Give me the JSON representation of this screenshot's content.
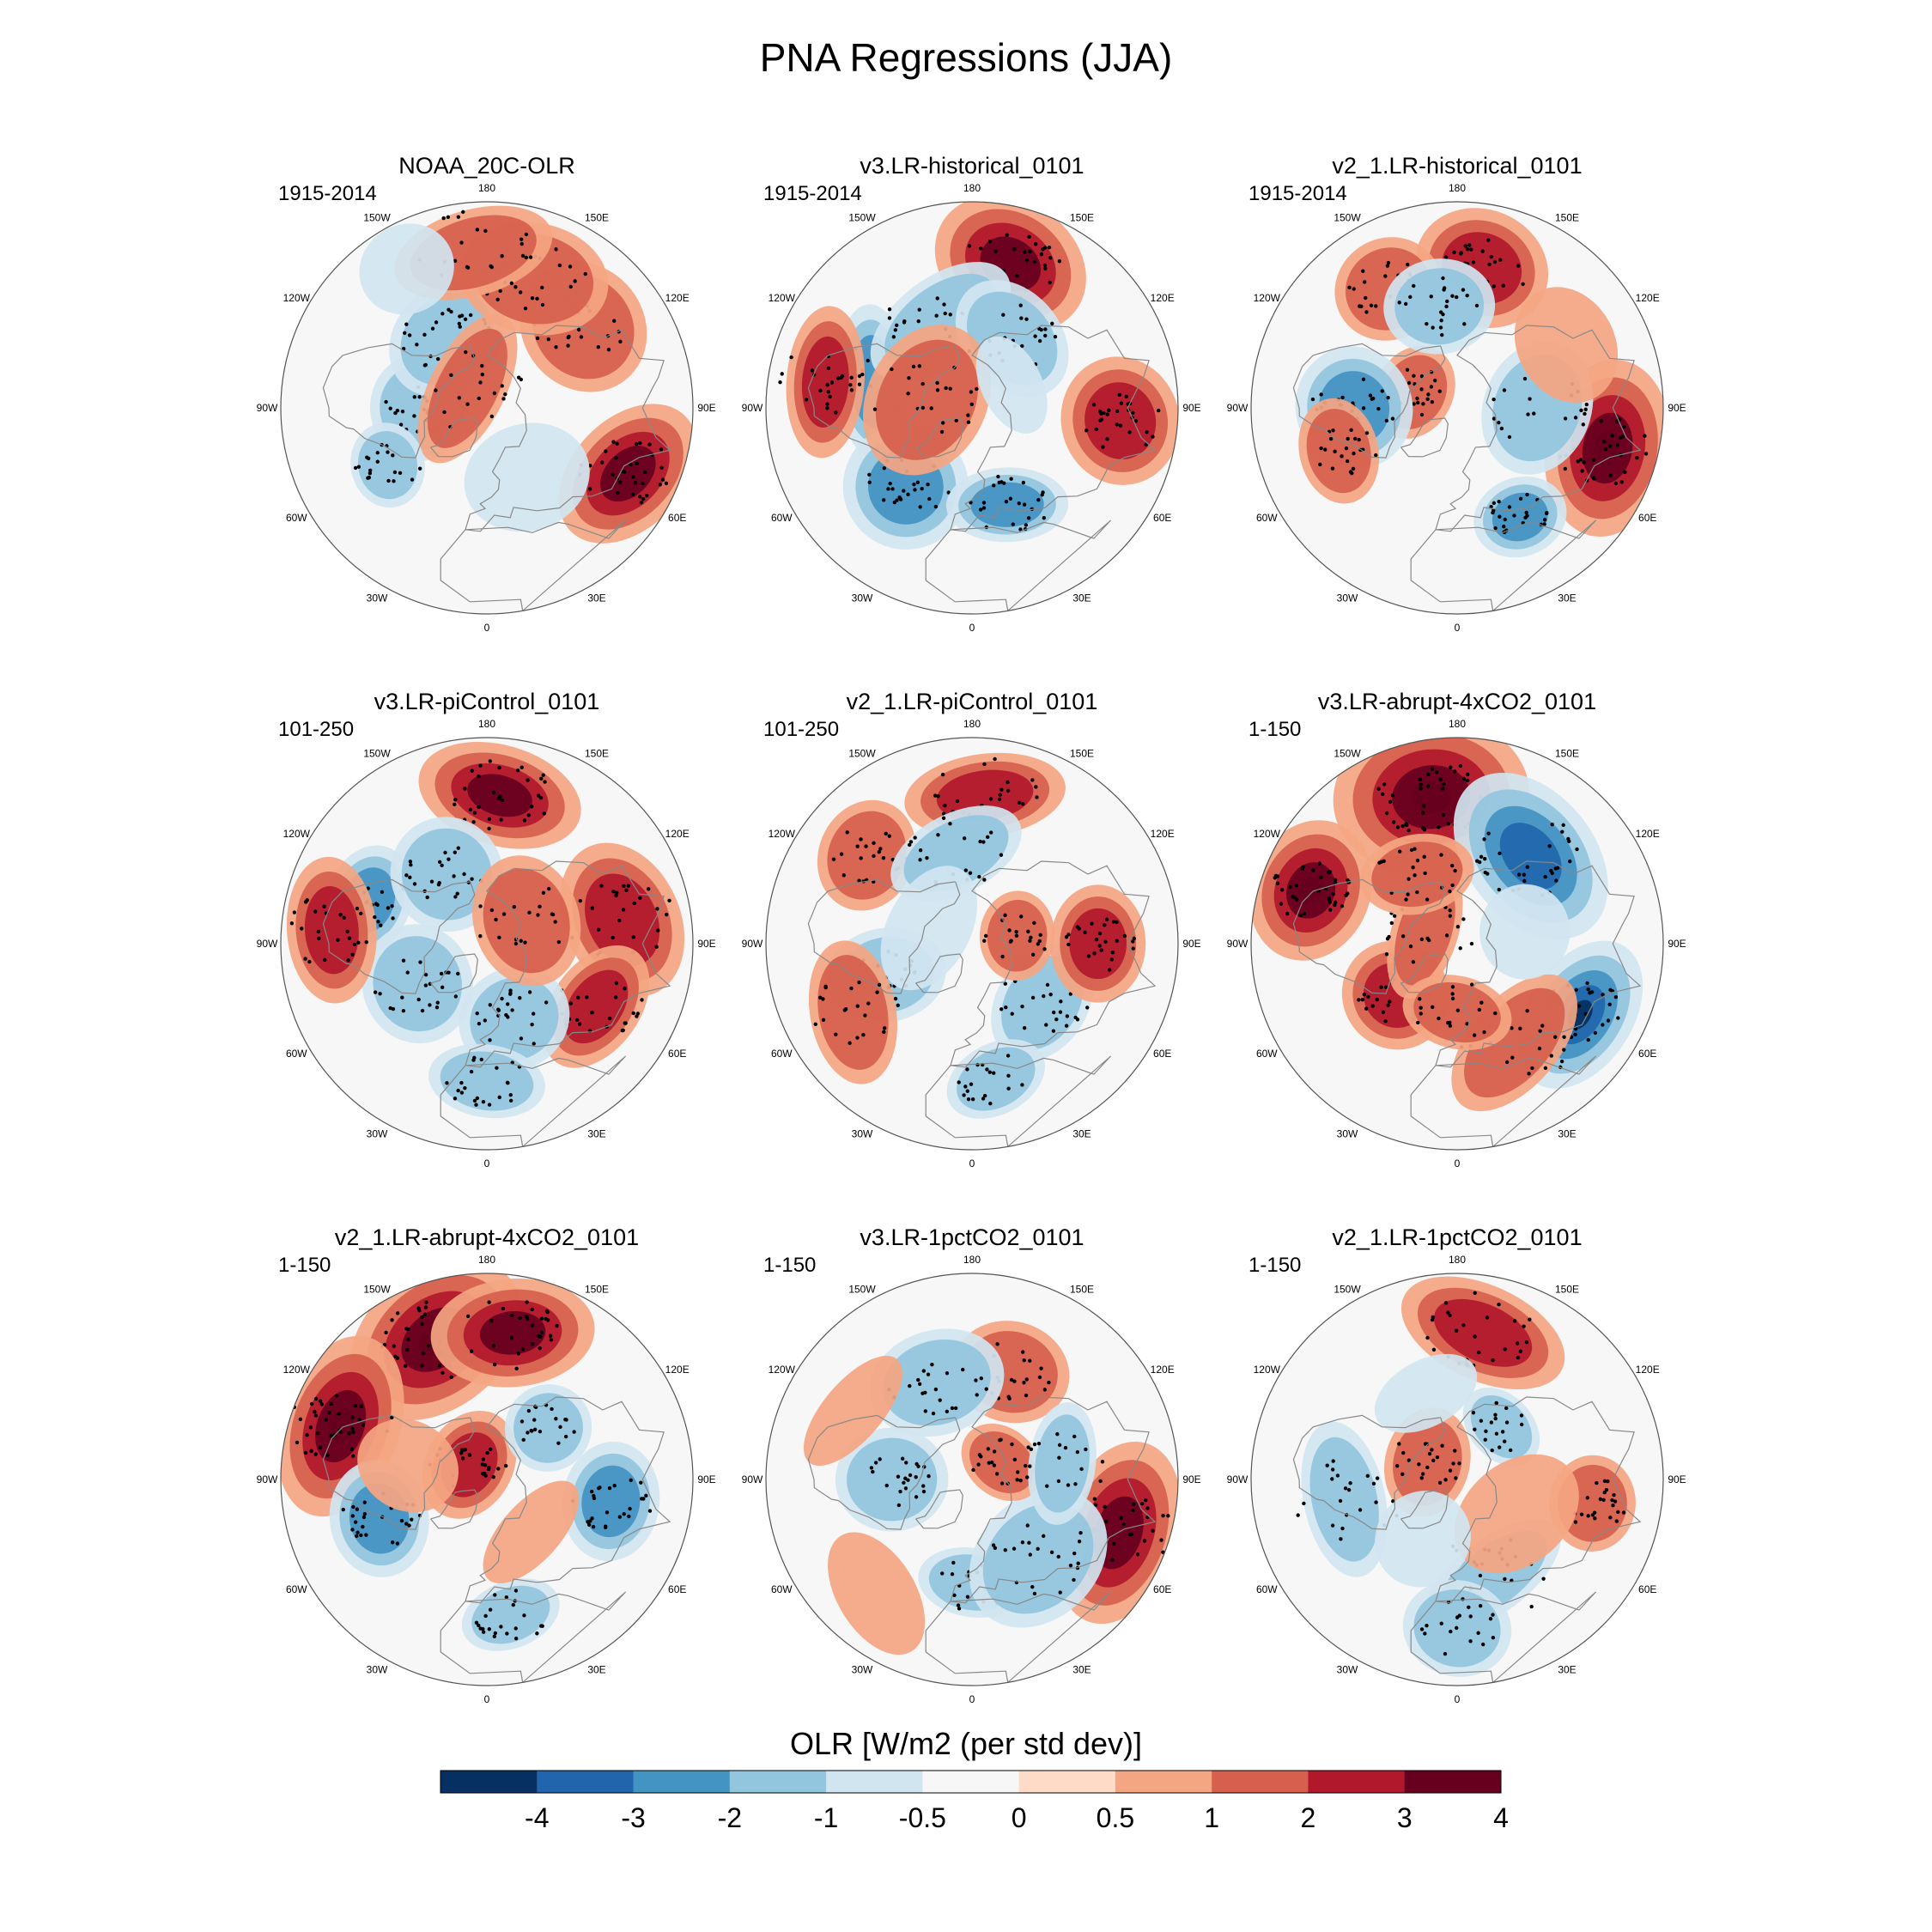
{
  "figure_title": "PNA Regressions (JJA)",
  "colors": {
    "levels": [
      "#053061",
      "#2166ac",
      "#4393c3",
      "#92c5de",
      "#d1e5f0",
      "#f7f7f7",
      "#fddbc7",
      "#f4a582",
      "#d6604d",
      "#b2182b",
      "#67001f"
    ],
    "land": "#888888",
    "border": "#555555"
  },
  "chart_data": {
    "type": "heatmap",
    "projection": "north-polar-stereographic",
    "title": "PNA Regressions (JJA)",
    "stipple_meaning": "statistically significant",
    "longitude_labels": [
      "180",
      "150E",
      "120E",
      "90E",
      "60E",
      "30E",
      "0",
      "30W",
      "60W",
      "90W",
      "120W",
      "150W"
    ],
    "panels": [
      {
        "title": "NOAA_20C-OLR",
        "period": "1915-2014",
        "features": [
          {
            "lon": 130,
            "lat": 35,
            "value": 1.5
          },
          {
            "lon": 65,
            "lat": 22,
            "value": 3.5
          },
          {
            "lon": -90,
            "lat": 60,
            "value": -1.5
          },
          {
            "lon": -150,
            "lat": 55,
            "value": -1.5
          },
          {
            "lon": 160,
            "lat": 30,
            "value": 1.5
          },
          {
            "lon": -175,
            "lat": 22,
            "value": 1.5
          },
          {
            "lon": -135,
            "lat": 78,
            "value": 1.5
          },
          {
            "lon": -60,
            "lat": 40,
            "value": -1
          },
          {
            "lon": 30,
            "lat": 55,
            "value": -0.5
          },
          {
            "lon": -150,
            "lat": 20,
            "value": -0.5
          }
        ]
      },
      {
        "title": "v3.LR-historical_0101",
        "period": "1915-2014",
        "features": [
          {
            "lon": 165,
            "lat": 25,
            "value": 3
          },
          {
            "lon": 85,
            "lat": 25,
            "value": 2.5
          },
          {
            "lon": -105,
            "lat": 45,
            "value": -2.5
          },
          {
            "lon": -40,
            "lat": 45,
            "value": -2
          },
          {
            "lon": 20,
            "lat": 45,
            "value": -2
          },
          {
            "lon": -160,
            "lat": 50,
            "value": -1.5
          },
          {
            "lon": 150,
            "lat": 55,
            "value": -1.5
          },
          {
            "lon": -100,
            "lat": 70,
            "value": 1.5
          },
          {
            "lon": -100,
            "lat": 25,
            "value": 2
          },
          {
            "lon": 120,
            "lat": 70,
            "value": -0.5
          }
        ]
      },
      {
        "title": "v2_1.LR-historical_0101",
        "period": "1915-2014",
        "features": [
          {
            "lon": 75,
            "lat": 22,
            "value": 4
          },
          {
            "lon": 170,
            "lat": 28,
            "value": 2
          },
          {
            "lon": -150,
            "lat": 30,
            "value": 1.5
          },
          {
            "lon": -110,
            "lat": 70,
            "value": 1.5
          },
          {
            "lon": -170,
            "lat": 45,
            "value": -1.5
          },
          {
            "lon": -90,
            "lat": 45,
            "value": -2
          },
          {
            "lon": 30,
            "lat": 35,
            "value": -2
          },
          {
            "lon": -70,
            "lat": 35,
            "value": 1.5
          },
          {
            "lon": 90,
            "lat": 55,
            "value": -1
          },
          {
            "lon": 120,
            "lat": 35,
            "value": 0.5
          }
        ]
      },
      {
        "title": "v3.LR-piControl_0101",
        "period": "101-250",
        "features": [
          {
            "lon": 175,
            "lat": 25,
            "value": 3
          },
          {
            "lon": 100,
            "lat": 30,
            "value": 2
          },
          {
            "lon": 60,
            "lat": 35,
            "value": 2
          },
          {
            "lon": -110,
            "lat": 35,
            "value": -2
          },
          {
            "lon": -150,
            "lat": 55,
            "value": -1.5
          },
          {
            "lon": -60,
            "lat": 55,
            "value": -1.5
          },
          {
            "lon": 20,
            "lat": 55,
            "value": -1.5
          },
          {
            "lon": 0,
            "lat": 30,
            "value": -1.5
          },
          {
            "lon": -95,
            "lat": 22,
            "value": 2
          },
          {
            "lon": 120,
            "lat": 70,
            "value": 1
          }
        ]
      },
      {
        "title": "v2_1.LR-piControl_0101",
        "period": "101-250",
        "features": [
          {
            "lon": 175,
            "lat": 25,
            "value": 2.5
          },
          {
            "lon": -130,
            "lat": 30,
            "value": 1.5
          },
          {
            "lon": -170,
            "lat": 50,
            "value": -1.5
          },
          {
            "lon": -70,
            "lat": 50,
            "value": -1.5
          },
          {
            "lon": 50,
            "lat": 50,
            "value": -1.5
          },
          {
            "lon": 90,
            "lat": 35,
            "value": 2
          },
          {
            "lon": -60,
            "lat": 30,
            "value": 1.5
          },
          {
            "lon": 100,
            "lat": 70,
            "value": 1
          },
          {
            "lon": 10,
            "lat": 30,
            "value": -1
          },
          {
            "lon": -110,
            "lat": 70,
            "value": -0.5
          }
        ]
      },
      {
        "title": "v3.LR-abrupt-4xCO2_0101",
        "period": "1-150",
        "features": [
          {
            "lon": -170,
            "lat": 25,
            "value": 4.5
          },
          {
            "lon": -110,
            "lat": 22,
            "value": 4
          },
          {
            "lon": 140,
            "lat": 40,
            "value": -3
          },
          {
            "lon": 60,
            "lat": 28,
            "value": -4
          },
          {
            "lon": -50,
            "lat": 55,
            "value": 2
          },
          {
            "lon": 30,
            "lat": 40,
            "value": 1.5
          },
          {
            "lon": -110,
            "lat": 75,
            "value": 1.5
          },
          {
            "lon": 0,
            "lat": 60,
            "value": 1
          },
          {
            "lon": 100,
            "lat": 60,
            "value": -0.5
          },
          {
            "lon": -150,
            "lat": 55,
            "value": 1.5
          }
        ]
      },
      {
        "title": "v2_1.LR-abrupt-4xCO2_0101",
        "period": "1-150",
        "features": [
          {
            "lon": -160,
            "lat": 25,
            "value": 4
          },
          {
            "lon": -110,
            "lat": 22,
            "value": 4
          },
          {
            "lon": 170,
            "lat": 25,
            "value": 3
          },
          {
            "lon": 80,
            "lat": 35,
            "value": -2
          },
          {
            "lon": -70,
            "lat": 40,
            "value": -2
          },
          {
            "lon": -130,
            "lat": 80,
            "value": 2
          },
          {
            "lon": 10,
            "lat": 30,
            "value": -1.5
          },
          {
            "lon": 130,
            "lat": 55,
            "value": -1
          },
          {
            "lon": -100,
            "lat": 55,
            "value": 0.5
          },
          {
            "lon": 40,
            "lat": 60,
            "value": 0.5
          }
        ]
      },
      {
        "title": "v3.LR-1pctCO2_0101",
        "period": "1-150",
        "features": [
          {
            "lon": 70,
            "lat": 22,
            "value": 3.5
          },
          {
            "lon": 160,
            "lat": 40,
            "value": 1.5
          },
          {
            "lon": -160,
            "lat": 45,
            "value": -1.5
          },
          {
            "lon": -90,
            "lat": 55,
            "value": -1.5
          },
          {
            "lon": 0,
            "lat": 45,
            "value": -1.5
          },
          {
            "lon": 40,
            "lat": 45,
            "value": -1.5
          },
          {
            "lon": 120,
            "lat": 75,
            "value": 1
          },
          {
            "lon": -120,
            "lat": 30,
            "value": 0.5
          },
          {
            "lon": 100,
            "lat": 50,
            "value": -1
          },
          {
            "lon": -40,
            "lat": 25,
            "value": 0.5
          }
        ]
      },
      {
        "title": "v2_1.LR-1pctCO2_0101",
        "period": "1-150",
        "features": [
          {
            "lon": 170,
            "lat": 25,
            "value": 2.5
          },
          {
            "lon": 80,
            "lat": 30,
            "value": 1.5
          },
          {
            "lon": -120,
            "lat": 75,
            "value": 1.5
          },
          {
            "lon": -80,
            "lat": 40,
            "value": -1.5
          },
          {
            "lon": 20,
            "lat": 45,
            "value": -1.5
          },
          {
            "lon": 0,
            "lat": 25,
            "value": -1
          },
          {
            "lon": 140,
            "lat": 60,
            "value": -1
          },
          {
            "lon": -160,
            "lat": 50,
            "value": -0.5
          },
          {
            "lon": 60,
            "lat": 60,
            "value": 0.5
          },
          {
            "lon": -30,
            "lat": 60,
            "value": -0.5
          }
        ]
      }
    ],
    "colorbar": {
      "label": "OLR [W/m2 (per std dev)]",
      "ticks": [
        "-4",
        "-3",
        "-2",
        "-1",
        "-0.5",
        "0",
        "0.5",
        "1",
        "2",
        "3",
        "4"
      ],
      "tick_values": [
        -4,
        -3,
        -2,
        -1,
        -0.5,
        0,
        0.5,
        1,
        2,
        3,
        4
      ]
    }
  }
}
